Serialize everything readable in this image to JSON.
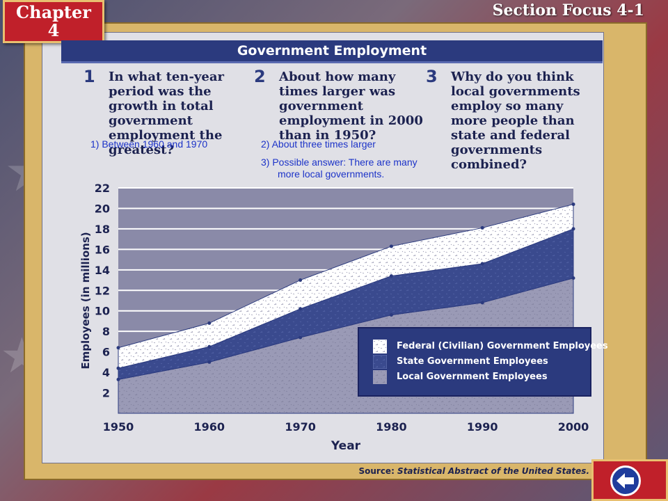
{
  "header": {
    "chapter_label": "Chapter",
    "chapter_number": "4",
    "section_label": "Section Focus 4-1"
  },
  "title": "Government Employment",
  "questions": [
    {
      "number": "1",
      "text": "In what ten-year period was the growth in total government employment the greatest?"
    },
    {
      "number": "2",
      "text": "About how many times larger was government employment in 2000 than in 1950?"
    },
    {
      "number": "3",
      "text": "Why do you think local governments employ so many more people than state and federal governments combined?"
    }
  ],
  "answers": {
    "a1": "1)  Between 1960 and 1970",
    "a2": "2)  About three times larger",
    "a3_line1": "3)  Possible answer: There are many",
    "a3_line2": "more local governments."
  },
  "source": {
    "prefix": "Source: ",
    "title": "Statistical Abstract of the United States."
  },
  "colors": {
    "local": "#9a9ab6",
    "state": "#3a4a8e",
    "federal": "#ffffff",
    "plot_bg": "#8a8aa8",
    "title_bar": "#2b3a7e"
  },
  "nav": {
    "back_icon": "back-arrow-icon"
  },
  "chart_data": {
    "type": "area",
    "stacked": true,
    "x": [
      1950,
      1960,
      1970,
      1980,
      1990,
      2000
    ],
    "xlabel": "Year",
    "ylabel": "Employees (in millions)",
    "ylim": [
      0,
      22
    ],
    "yticks": [
      2,
      4,
      6,
      8,
      10,
      12,
      14,
      16,
      18,
      20,
      22
    ],
    "grid": true,
    "legend_position": "bottom-right",
    "series": [
      {
        "name": "Local Government Employees",
        "values": [
          3.3,
          5.0,
          7.4,
          9.6,
          10.8,
          13.2
        ]
      },
      {
        "name": "State Government Employees",
        "values": [
          1.1,
          1.5,
          2.8,
          3.8,
          3.8,
          4.8
        ]
      },
      {
        "name": "Federal (Civilian) Government Employees",
        "values": [
          2.0,
          2.3,
          2.8,
          2.9,
          3.5,
          2.4
        ]
      }
    ]
  }
}
